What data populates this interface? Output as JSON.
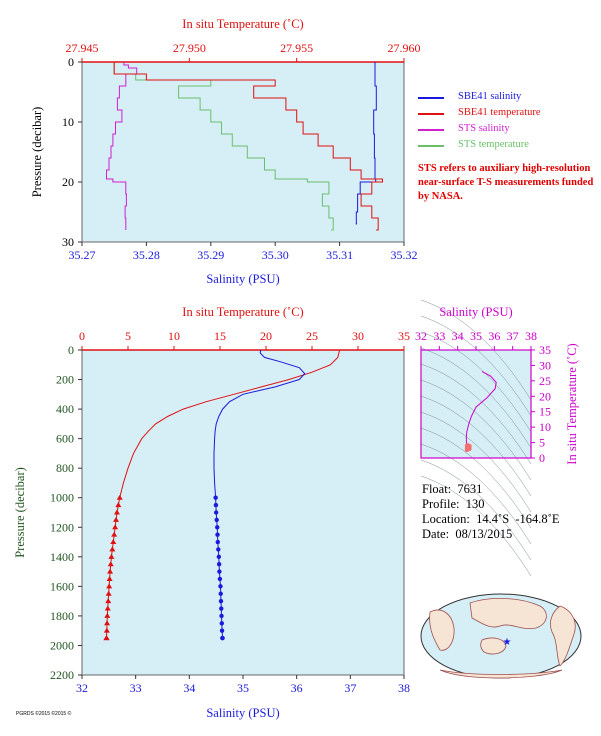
{
  "colors": {
    "background": "#d6eef6",
    "salinity": "#1a1adc",
    "temperature": "#e01010",
    "sts_salinity": "#d020d0",
    "sts_temperature": "#6ac06a",
    "pressure_axis": "#225522",
    "ts_axis": "#cc00cc"
  },
  "legend": [
    {
      "label": "SBE41 salinity",
      "color": "#1a1adc"
    },
    {
      "label": "SBE41 temperature",
      "color": "#e01010"
    },
    {
      "label": "STS salinity",
      "color": "#d020d0"
    },
    {
      "label": "STS temperature",
      "color": "#6ac06a"
    }
  ],
  "note": "STS refers to auxiliary high-resolution near-surface T-S measurements funded by NASA.",
  "float_info": {
    "float": "Float:  7631",
    "profile": "Profile:  130",
    "location": "Location:  14.4˚S  -164.8˚E",
    "date": "Date:  08/13/2015"
  },
  "footer": "PGRDS ©2015 ©2015 ©",
  "chart_data": [
    {
      "type": "line",
      "name": "near-surface",
      "title_top": "In situ Temperature (˚C)",
      "xlabel": "Salinity (PSU)",
      "ylabel": "Pressure (decibar)",
      "salinity_range": [
        35.27,
        35.32
      ],
      "salinity_ticks": [
        "35.27",
        "35.28",
        "35.29",
        "35.30",
        "35.31",
        "35.32"
      ],
      "temperature_range": [
        27.945,
        27.96
      ],
      "temperature_ticks": [
        "27.945",
        "27.950",
        "27.955",
        "27.960"
      ],
      "pressure_range": [
        0,
        30
      ],
      "pressure_ticks": [
        "0",
        "10",
        "20",
        "30"
      ],
      "series": [
        {
          "name": "SBE41 salinity",
          "pressure": [
            0,
            4,
            8,
            12,
            16,
            19.5,
            20,
            22,
            25,
            27
          ],
          "values": [
            35.3155,
            35.3157,
            35.3153,
            35.3154,
            35.3155,
            35.3156,
            35.3132,
            35.3128,
            35.3126,
            35.3127
          ]
        },
        {
          "name": "STS salinity",
          "pressure": [
            0,
            0.5,
            1,
            2,
            4,
            6,
            8,
            10,
            12,
            14,
            16,
            18,
            19.5,
            20,
            22,
            24,
            26,
            28
          ],
          "values": [
            35.2765,
            35.2772,
            35.2785,
            35.2768,
            35.2758,
            35.2755,
            35.2762,
            35.2752,
            35.2748,
            35.2745,
            35.2742,
            35.2738,
            35.2748,
            35.2768,
            35.2769,
            35.2767,
            35.2768,
            35.2768
          ]
        },
        {
          "name": "STS temperature",
          "pressure": [
            0,
            2,
            3,
            4,
            6,
            8,
            10,
            12,
            14,
            16,
            18,
            19.5,
            20,
            22,
            24,
            26,
            28
          ],
          "values": [
            27.9465,
            27.9475,
            27.951,
            27.9495,
            27.9505,
            27.951,
            27.9515,
            27.952,
            27.9527,
            27.9535,
            27.954,
            27.9555,
            27.9565,
            27.9562,
            27.9565,
            27.9567,
            27.9566
          ]
        },
        {
          "name": "SBE41 temperature",
          "pressure": [
            0,
            2,
            3,
            4,
            6,
            8,
            10,
            12,
            14,
            16,
            18,
            19.5,
            20,
            22,
            24,
            26,
            28
          ],
          "values": [
            27.9465,
            27.948,
            27.954,
            27.953,
            27.9545,
            27.955,
            27.9553,
            27.956,
            27.9567,
            27.9575,
            27.958,
            27.959,
            27.9585,
            27.958,
            27.9585,
            27.9588,
            27.9587
          ]
        }
      ]
    },
    {
      "type": "line",
      "name": "full-profile",
      "title_top": "In situ Temperature (˚C)",
      "xlabel": "Salinity (PSU)",
      "ylabel": "Pressure (decibar)",
      "salinity_range": [
        32,
        38
      ],
      "salinity_ticks": [
        "32",
        "33",
        "34",
        "35",
        "36",
        "37",
        "38"
      ],
      "temperature_range": [
        0,
        35
      ],
      "temperature_ticks": [
        "0",
        "5",
        "10",
        "15",
        "20",
        "25",
        "30",
        "35"
      ],
      "pressure_range": [
        0,
        2200
      ],
      "pressure_ticks": [
        "0",
        "200",
        "400",
        "600",
        "800",
        "1000",
        "1200",
        "1400",
        "1600",
        "1800",
        "2000",
        "2200"
      ],
      "series": [
        {
          "name": "SBE41 temperature",
          "pressure": [
            0,
            50,
            100,
            150,
            200,
            250,
            300,
            350,
            400,
            450,
            500,
            550,
            600,
            700,
            800,
            900,
            1000,
            1100,
            1200,
            1300,
            1400,
            1500,
            1600,
            1700,
            1800,
            1900,
            1950
          ],
          "values": [
            28.0,
            27.8,
            27.0,
            25.0,
            22.5,
            19.5,
            16.5,
            13.5,
            11.0,
            9.3,
            8.0,
            7.2,
            6.5,
            5.6,
            5.0,
            4.5,
            4.1,
            3.8,
            3.6,
            3.4,
            3.2,
            3.05,
            2.95,
            2.85,
            2.75,
            2.7,
            2.65
          ]
        },
        {
          "name": "SBE41 salinity",
          "pressure": [
            0,
            20,
            50,
            80,
            120,
            160,
            200,
            250,
            300,
            350,
            400,
            450,
            500,
            550,
            600,
            700,
            800,
            900,
            1000,
            1100,
            1200,
            1300,
            1400,
            1500,
            1600,
            1700,
            1800,
            1900,
            1950
          ],
          "values": [
            35.33,
            35.32,
            35.4,
            35.7,
            36.05,
            36.15,
            36.05,
            35.6,
            35.0,
            34.75,
            34.62,
            34.55,
            34.5,
            34.48,
            34.47,
            34.46,
            34.46,
            34.47,
            34.49,
            34.5,
            34.52,
            34.53,
            34.55,
            34.56,
            34.58,
            34.59,
            34.6,
            34.61,
            34.62
          ]
        }
      ]
    },
    {
      "type": "scatter",
      "name": "T-S diagram",
      "title_top": "Salinity (PSU)",
      "ylabel": "In situ Temperature (˚C)",
      "salinity_range": [
        32,
        38
      ],
      "salinity_ticks": [
        "32",
        "33",
        "34",
        "35",
        "36",
        "37",
        "38"
      ],
      "temperature_range": [
        0,
        35
      ],
      "temperature_ticks": [
        "0",
        "5",
        "10",
        "15",
        "20",
        "25",
        "30",
        "35"
      ],
      "series": [
        {
          "name": "profile",
          "x": [
            35.33,
            35.4,
            35.8,
            36.1,
            36.05,
            35.6,
            35.0,
            34.75,
            34.6,
            34.5,
            34.47,
            34.48,
            34.55,
            34.62
          ],
          "y": [
            28.0,
            27.8,
            26.5,
            24.5,
            22.5,
            19.5,
            16.5,
            13.5,
            11.0,
            8.5,
            6.5,
            5.0,
            4.0,
            3.0
          ]
        }
      ]
    }
  ]
}
